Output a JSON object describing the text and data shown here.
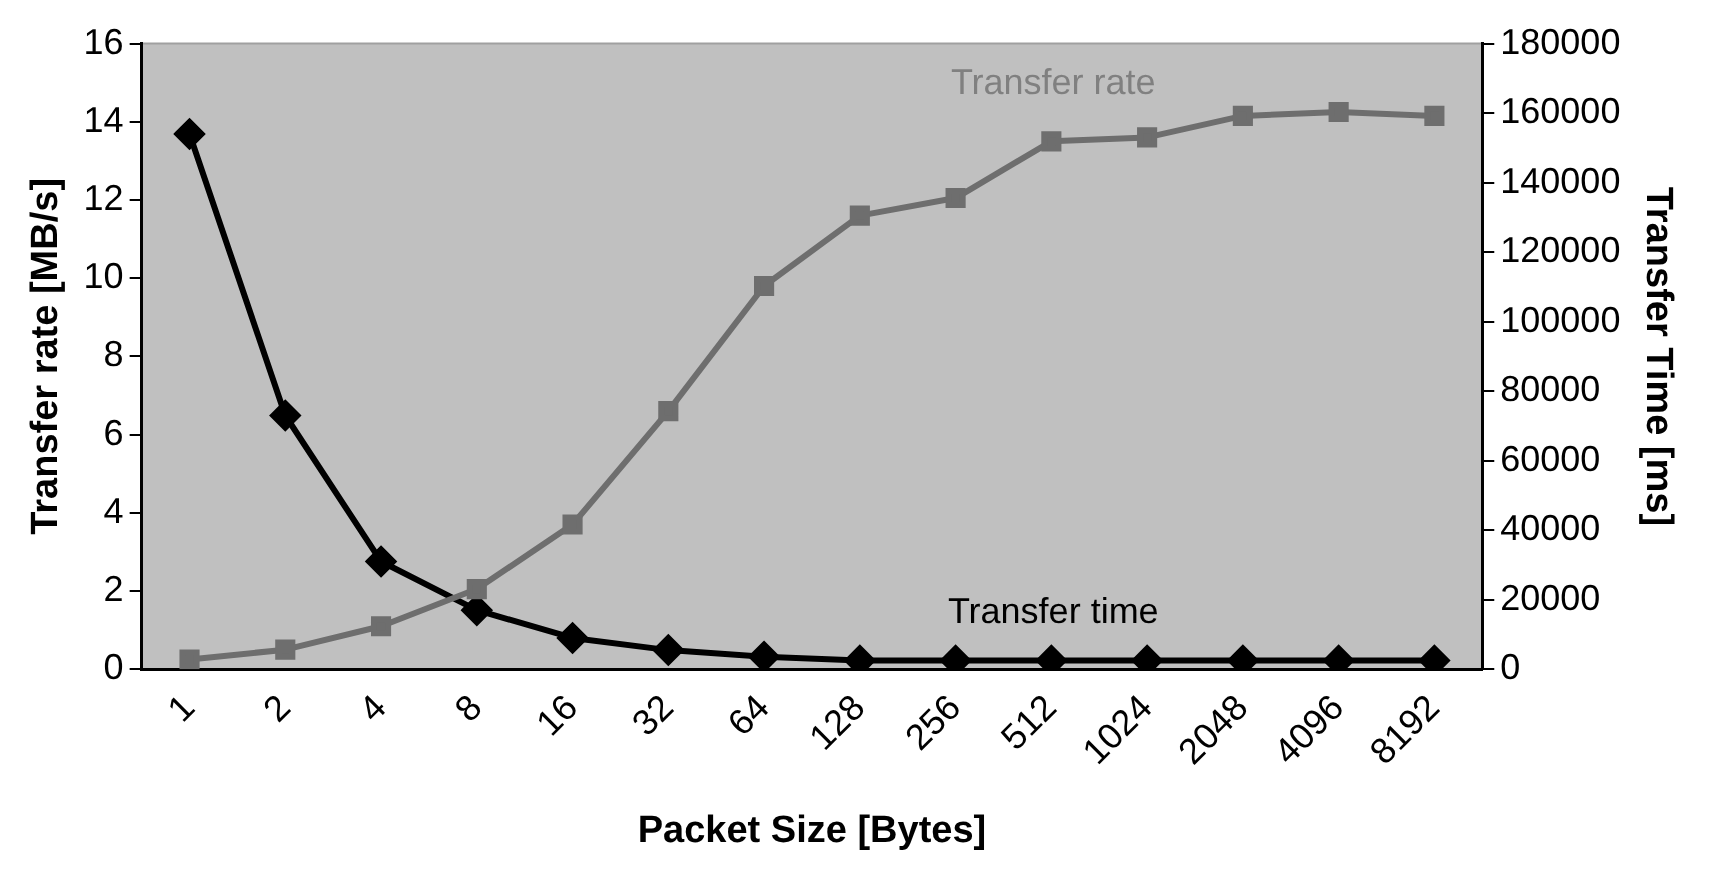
{
  "chart_data": {
    "type": "line",
    "xlabel": "Packet Size [Bytes]",
    "ylabel": "Transfer rate [MB/s]",
    "y2label": "Transfer Time [ms]",
    "categories": [
      "1",
      "2",
      "4",
      "8",
      "16",
      "32",
      "64",
      "128",
      "256",
      "512",
      "1024",
      "2048",
      "4096",
      "8192"
    ],
    "series": [
      {
        "name": "Transfer rate",
        "color": "#6e6e6e",
        "marker": "square",
        "values": [
          0.25,
          0.5,
          1.1,
          2.05,
          3.7,
          6.6,
          9.8,
          11.6,
          12.05,
          13.5,
          13.6,
          14.15,
          14.25,
          14.15
        ]
      },
      {
        "name": "Transfer time",
        "color": "#000000",
        "marker": "diamond",
        "axis": "y2",
        "values": [
          154000,
          73000,
          31000,
          17000,
          9000,
          5500,
          3600,
          2500,
          2500,
          2500,
          2500,
          2500,
          2500,
          2500
        ]
      }
    ],
    "ylim": [
      0,
      16
    ],
    "yticks": [
      0,
      2,
      4,
      6,
      8,
      10,
      12,
      14,
      16
    ],
    "y2lim": [
      0,
      180000
    ],
    "y2ticks": [
      0,
      20000,
      40000,
      60000,
      80000,
      100000,
      120000,
      140000,
      160000,
      180000
    ],
    "grid": false,
    "legend": false
  }
}
